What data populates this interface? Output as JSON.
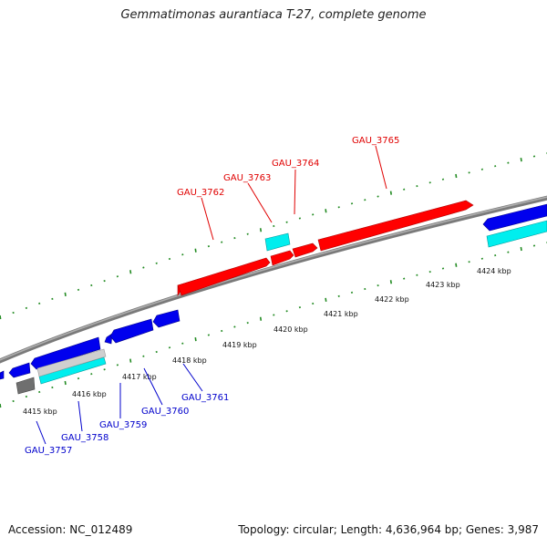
{
  "title": "Gemmatimonas aurantiaca T-27, complete genome",
  "accession": "Accession: NC_012489",
  "summary": "Topology: circular; Length: 4,636,964 bp; Genes: 3,987",
  "colors": {
    "forward_gene": "#ff0000",
    "reverse_gene": "#0000ee",
    "cds_cyan": "#00eeee",
    "backbone": "#888888",
    "tick_green": "#228b22",
    "top_label": "#e00000",
    "bottom_label": "#0000cc"
  },
  "kbp_ticks": [
    "4415 kbp",
    "4416 kbp",
    "4417 kbp",
    "4418 kbp",
    "4419 kbp",
    "4420 kbp",
    "4421 kbp",
    "4422 kbp",
    "4423 kbp",
    "4424 kbp"
  ],
  "genes_top": [
    "GAU_3762",
    "GAU_3763",
    "GAU_3764",
    "GAU_3765"
  ],
  "genes_bottom": [
    "GAU_3757",
    "GAU_3758",
    "GAU_3759",
    "GAU_3760",
    "GAU_3761"
  ]
}
